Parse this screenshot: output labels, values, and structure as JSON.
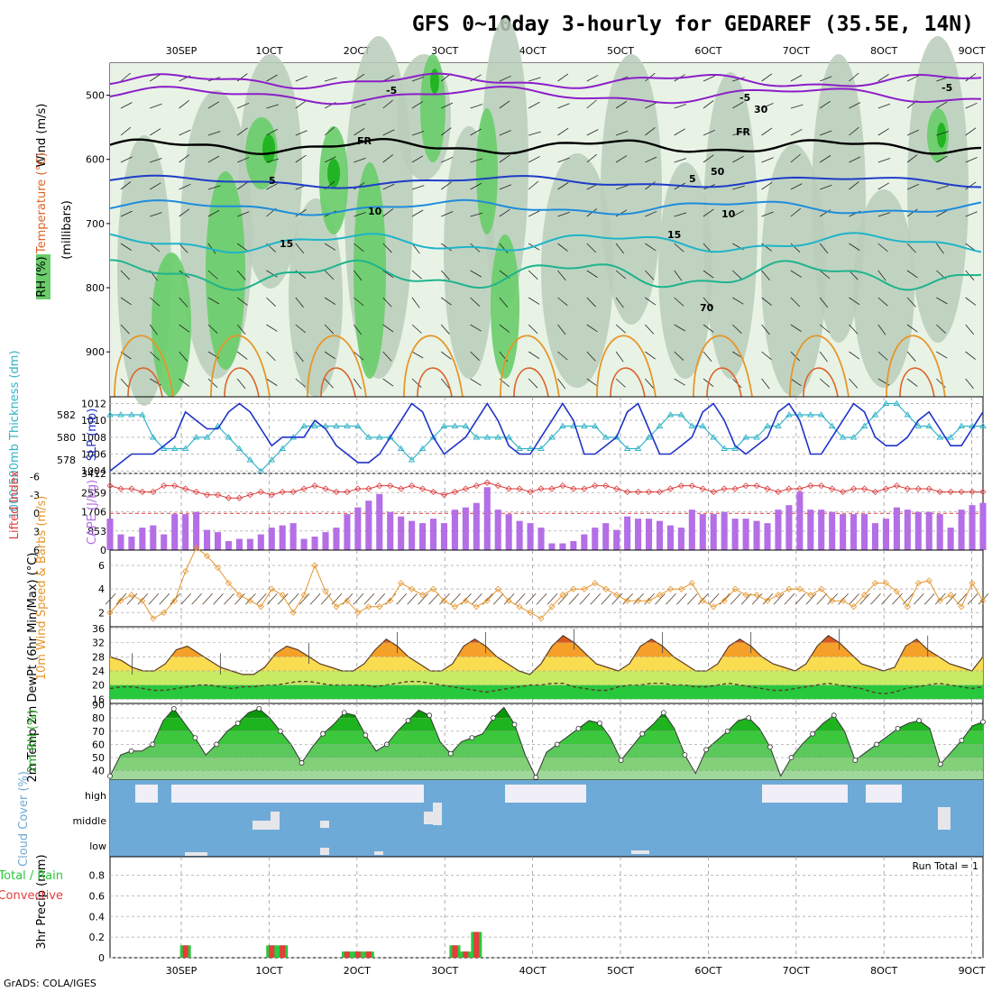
{
  "title": "GFS 0~10day 3-hourly for GEDAREF (35.5E, 14N)",
  "footer": "GrADS: COLA/IGES",
  "colors": {
    "rh_light": "#e8f3e6",
    "rh_mid": "#b9ccba",
    "rh_green": "#69cd69",
    "rh_dark": "#22b422",
    "temp_purple": "#8c1ec8",
    "temp_blue": "#1e3cc8",
    "temp_sky": "#1e8cdc",
    "temp_teal": "#1eb4c8",
    "temp_green": "#1eb48c",
    "temp_orange": "#e69628",
    "temp_dorange": "#dc6428",
    "temp_red": "#e61e50",
    "slp": "#1e32c8",
    "thick": "#32b4c8",
    "lifted": "#dc3c3c",
    "cape": "#b46ee6",
    "wind": "#e6962d",
    "barb": "#503c28",
    "cloud": "#6eaad7",
    "precip_conv": "#e63c3c",
    "precip_total": "#28c83c"
  },
  "chart_data": [
    {
      "panel": "upper-air",
      "type": "heatmap",
      "ylabel": "(millibars)",
      "yticks": [
        500,
        600,
        700,
        800,
        900
      ],
      "ylim": [
        970,
        450
      ],
      "legend_rh": "RH (%)",
      "legend_temp": "Temperature (°C)",
      "legend_wind": "Wind (m/s)",
      "contour_labels": [
        "-5",
        "-5",
        "-5",
        "FR",
        "FR",
        "5",
        "5",
        "10",
        "10",
        "15",
        "15",
        "30",
        "50",
        "70"
      ]
    },
    {
      "panel": "slp-thickness",
      "type": "line",
      "left_label": "1000-500mb Thickness (dm)",
      "right_label": "SLP (mb)",
      "left_ticks": [
        578,
        580,
        582
      ],
      "right_ticks": [
        1004,
        1006,
        1008,
        1010,
        1012
      ],
      "left_lim": [
        576.8,
        583.6
      ],
      "right_lim": [
        1003.7,
        1012.8
      ],
      "slp": [
        1004,
        1005,
        1006,
        1006,
        1006,
        1007,
        1008,
        1011,
        1010,
        1009,
        1009,
        1011,
        1012,
        1011,
        1009,
        1007,
        1008,
        1008,
        1008,
        1010,
        1009,
        1007,
        1006,
        1005,
        1005,
        1006,
        1008,
        1010,
        1012,
        1011,
        1008,
        1006,
        1007,
        1008,
        1010,
        1012,
        1010,
        1007,
        1006,
        1006,
        1008,
        1010,
        1012,
        1010,
        1006,
        1006,
        1007,
        1008,
        1011,
        1012,
        1009,
        1006,
        1006,
        1007,
        1008,
        1011,
        1012,
        1010,
        1007,
        1006,
        1007,
        1008,
        1011,
        1012,
        1010,
        1006,
        1006,
        1008,
        1010,
        1012,
        1011,
        1008,
        1007,
        1007,
        1008,
        1010,
        1011,
        1009,
        1007,
        1007,
        1009,
        1011
      ],
      "thickness": [
        582,
        582,
        582,
        582,
        580,
        579,
        579,
        579,
        580,
        580,
        581,
        580,
        579,
        578,
        577,
        578,
        579,
        580,
        581,
        581,
        581,
        581,
        581,
        581,
        580,
        580,
        580,
        579,
        578,
        579,
        580,
        581,
        581,
        581,
        580,
        580,
        580,
        580,
        579,
        579,
        579,
        580,
        581,
        581,
        581,
        581,
        580,
        580,
        579,
        579,
        580,
        581,
        582,
        582,
        581,
        581,
        580,
        579,
        579,
        580,
        580,
        581,
        581,
        582,
        582,
        582,
        582,
        581,
        580,
        580,
        581,
        582,
        583,
        583,
        582,
        581,
        581,
        580,
        580,
        581,
        581,
        581
      ]
    },
    {
      "panel": "cape-lifted",
      "type": "bar",
      "left_label": "Lifted Index",
      "right_label": "CAPE (J/kg)",
      "left_ticks": [
        -6,
        -3,
        0,
        3,
        6
      ],
      "right_ticks": [
        0,
        853,
        1706,
        2559,
        3412
      ],
      "left_lim": [
        -6.5,
        6
      ],
      "right_lim": [
        0,
        3412
      ],
      "cape": [
        1400,
        700,
        600,
        1000,
        1100,
        700,
        1600,
        1600,
        1700,
        900,
        800,
        400,
        500,
        500,
        700,
        1000,
        1100,
        1200,
        500,
        600,
        800,
        1000,
        1600,
        1900,
        2200,
        2500,
        1700,
        1500,
        1300,
        1200,
        1400,
        1200,
        1800,
        1900,
        2100,
        2800,
        1800,
        1600,
        1300,
        1200,
        1000,
        300,
        300,
        400,
        700,
        1000,
        1200,
        900,
        1500,
        1400,
        1400,
        1300,
        1100,
        1000,
        1800,
        1600,
        1600,
        1700,
        1400,
        1400,
        1300,
        1200,
        1800,
        2000,
        2600,
        1800,
        1800,
        1700,
        1600,
        1600,
        1600,
        1200,
        1400,
        1900,
        1800,
        1700,
        1700,
        1600,
        1000,
        1800,
        2000,
        2100
      ],
      "lifted": [
        -4.5,
        -4,
        -4,
        -3.5,
        -3.5,
        -4.5,
        -4.5,
        -4,
        -3.5,
        -3,
        -3,
        -2.5,
        -2.5,
        -3,
        -3.5,
        -3,
        -3.5,
        -3.5,
        -4,
        -4.5,
        -4,
        -3.5,
        -3.5,
        -4,
        -4,
        -4.5,
        -4.5,
        -4,
        -4.5,
        -4,
        -3.5,
        -3,
        -3.5,
        -4,
        -4.5,
        -5,
        -4.5,
        -4,
        -4,
        -3.5,
        -4,
        -4,
        -4.5,
        -4,
        -4,
        -4.5,
        -4.5,
        -4,
        -3.5,
        -3.5,
        -3.5,
        -3.5,
        -4,
        -4.5,
        -4.5,
        -4,
        -3.5,
        -4,
        -4,
        -4.5,
        -4.5,
        -4,
        -3.5,
        -4,
        -4,
        -4.5,
        -4.5,
        -4,
        -3.5,
        -4,
        -4,
        -3.5,
        -4,
        -4.5,
        -4,
        -4,
        -4,
        -3.5,
        -3.5,
        -3.5,
        -3.5,
        -3.5
      ]
    },
    {
      "panel": "wind10m",
      "type": "line",
      "ylabel": "10m Wind Speed & Barbs (m/s)",
      "yticks": [
        2,
        4,
        6
      ],
      "ylim": [
        0.8,
        7.3
      ],
      "values": [
        2,
        3,
        3.5,
        3,
        1.5,
        2,
        3,
        5.5,
        7.5,
        6.8,
        5.8,
        4.5,
        3.5,
        3,
        2.5,
        4,
        3.5,
        2,
        3.5,
        6,
        3.8,
        2.5,
        3,
        2,
        2.5,
        2.5,
        3,
        4.5,
        4,
        3.5,
        4,
        3,
        2.5,
        3,
        2.5,
        3,
        4,
        3,
        2.5,
        2,
        1.5,
        2.5,
        3.5,
        4,
        4,
        4.5,
        4,
        3.5,
        3,
        3,
        3,
        3.5,
        4,
        4,
        4.5,
        3,
        2.5,
        3,
        4,
        3.5,
        3.5,
        3,
        3.5,
        4,
        4,
        3.5,
        4,
        3,
        3,
        2.5,
        3.5,
        4.5,
        4.5,
        3.8,
        2.5,
        4.5,
        4.7,
        3,
        3.5,
        2.5,
        4.5,
        3
      ]
    },
    {
      "panel": "temp2m",
      "type": "area",
      "ylabel": "2m Temp 2m DewPt (6hr Min/Max) (°C)",
      "yticks": [
        16,
        20,
        24,
        28,
        32,
        36
      ],
      "ylim": [
        14.8,
        36.5
      ],
      "temp": [
        28,
        27,
        25,
        24,
        24,
        26,
        30,
        31,
        29,
        27,
        25,
        24,
        23,
        23,
        25,
        29,
        31,
        30,
        28,
        26,
        25,
        24,
        24,
        26,
        30,
        33,
        31,
        28,
        26,
        24,
        24,
        26,
        31,
        33,
        31,
        28,
        26,
        24,
        23,
        26,
        31,
        34,
        32,
        29,
        26,
        25,
        24,
        26,
        31,
        33,
        31,
        28,
        26,
        24,
        24,
        26,
        31,
        33,
        31,
        28,
        26,
        25,
        24,
        26,
        31,
        34,
        32,
        29,
        26,
        25,
        24,
        25,
        31,
        33,
        30,
        28,
        26,
        25,
        24,
        28
      ],
      "dewpt": [
        19,
        19.5,
        19.5,
        19,
        18.5,
        18.5,
        19,
        19.5,
        20,
        20,
        19.5,
        19,
        19.5,
        19.5,
        20,
        20,
        20.5,
        21,
        21,
        20.5,
        20,
        20,
        20,
        20,
        19.5,
        20,
        20.5,
        21,
        21,
        20.5,
        20,
        19.5,
        19,
        18.5,
        18,
        18.5,
        19,
        19.5,
        20,
        20,
        20.5,
        20.5,
        19.5,
        19,
        18.5,
        18.5,
        19.5,
        20,
        20,
        20.5,
        20.5,
        20,
        20,
        19.5,
        19.5,
        20,
        20.5,
        20,
        19.5,
        19,
        18.5,
        18.5,
        19,
        19.5,
        20,
        20.5,
        20,
        19.5,
        19,
        18,
        17.5,
        18,
        19,
        19.5,
        20,
        20.5,
        20,
        19.5,
        19,
        19.5
      ]
    },
    {
      "panel": "rh2m",
      "type": "area",
      "ylabel": "2m RH (%)",
      "yticks": [
        40,
        50,
        60,
        70,
        80,
        90
      ],
      "ylim": [
        33,
        91
      ],
      "values": [
        36,
        52,
        55,
        55,
        60,
        78,
        87,
        76,
        65,
        52,
        60,
        70,
        76,
        84,
        87,
        80,
        70,
        60,
        46,
        58,
        68,
        75,
        84,
        82,
        67,
        55,
        60,
        70,
        78,
        86,
        82,
        62,
        53,
        62,
        65,
        68,
        80,
        88,
        75,
        52,
        35,
        54,
        60,
        66,
        72,
        78,
        76,
        65,
        48,
        58,
        68,
        75,
        84,
        72,
        52,
        38,
        56,
        63,
        70,
        78,
        80,
        72,
        58,
        36,
        50,
        60,
        68,
        76,
        82,
        70,
        48,
        54,
        60,
        66,
        72,
        76,
        78,
        72,
        45,
        54,
        63,
        74,
        77
      ]
    },
    {
      "panel": "cloud",
      "type": "bar",
      "ylabel": "Cloud Cover (%)",
      "categories": [
        "high",
        "middle",
        "low"
      ]
    },
    {
      "panel": "precip",
      "type": "bar",
      "ylabel": "3hr Precip (mm)",
      "left_label": "Total / Rain Convective",
      "run_total": "Run Total = 1",
      "yticks": [
        0,
        0.2,
        0.4,
        0.6,
        0.8
      ],
      "ylim": [
        0,
        0.98
      ],
      "bars": [
        [
          7,
          0.12
        ],
        [
          15,
          0.12
        ],
        [
          16,
          0.12
        ],
        [
          22,
          0.06
        ],
        [
          23,
          0.06
        ],
        [
          24,
          0.06
        ],
        [
          32,
          0.12
        ],
        [
          33,
          0.06
        ],
        [
          34,
          0.25
        ]
      ]
    }
  ],
  "dates": [
    "30SEP",
    "1OCT",
    "2OCT",
    "3OCT",
    "4OCT",
    "5OCT",
    "6OCT",
    "7OCT",
    "8OCT",
    "9OCT"
  ]
}
